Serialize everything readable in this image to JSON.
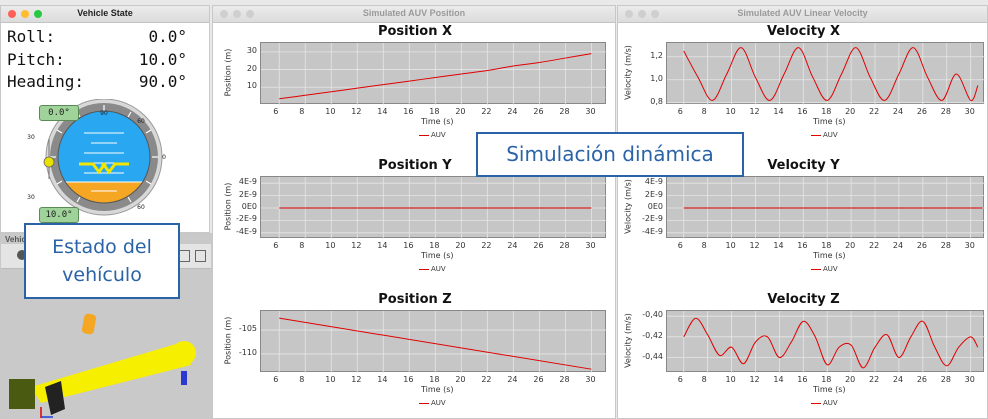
{
  "vehicle_state": {
    "title": "Vehicle State",
    "rows": [
      {
        "label": "Roll:",
        "value": "0.0°"
      },
      {
        "label": "Pitch:",
        "value": "10.0°"
      },
      {
        "label": "Heading:",
        "value": "90.0°"
      }
    ],
    "roll_badge": "0.0°",
    "pitch_badge": "10.0°",
    "dial_labels": {
      "top": "90",
      "ne": "60",
      "e": "0",
      "se": "60",
      "w30": "30",
      "sw30": "30"
    }
  },
  "viewer_3d": {
    "title": "Vehic"
  },
  "callouts": {
    "vehicle": [
      "Estado del",
      "vehículo"
    ],
    "simulation": "Simulación dinámica"
  },
  "position_window": {
    "title": "Simulated AUV Position"
  },
  "velocity_window": {
    "title": "Simulated AUV Linear Velocity"
  },
  "colors": {
    "line": "#e00000",
    "plot_bg": "#c6c6c6",
    "callout": "#2a63a8",
    "sky": "#29a7f0",
    "ground": "#f5a623",
    "marker": "#f2e600"
  },
  "chart_data": [
    {
      "type": "line",
      "title": "Position X",
      "xlabel": "Time (s)",
      "ylabel": "Position (m)",
      "xlim": [
        4.6,
        31.2
      ],
      "ylim": [
        0,
        35
      ],
      "xticks": [
        "6",
        "8",
        "10",
        "12",
        "14",
        "16",
        "18",
        "20",
        "22",
        "24",
        "26",
        "28",
        "30"
      ],
      "yticks": [
        "10",
        "20",
        "30"
      ],
      "series": [
        {
          "name": "AUV",
          "x": [
            6,
            8,
            10,
            12,
            14,
            16,
            18,
            20,
            22,
            24,
            26,
            28,
            30
          ],
          "y": [
            3.5,
            5.5,
            7.5,
            9.5,
            11.5,
            13.5,
            15.5,
            17.5,
            19.5,
            22,
            24,
            26.5,
            29
          ]
        }
      ]
    },
    {
      "type": "line",
      "title": "Position Y",
      "xlabel": "Time (s)",
      "ylabel": "Position (m)",
      "xlim": [
        4.6,
        31.2
      ],
      "ylim": [
        -5e-09,
        5e-09
      ],
      "xticks": [
        "6",
        "8",
        "10",
        "12",
        "14",
        "16",
        "18",
        "20",
        "22",
        "24",
        "26",
        "28",
        "30"
      ],
      "yticks": [
        "4E-9",
        "2E-9",
        "0E0",
        "-2E-9",
        "-4E-9"
      ],
      "series": [
        {
          "name": "AUV",
          "x": [
            6,
            30
          ],
          "y": [
            0,
            0
          ]
        }
      ]
    },
    {
      "type": "line",
      "title": "Position Z",
      "xlabel": "Time (s)",
      "ylabel": "Position (m)",
      "xlim": [
        4.6,
        31.2
      ],
      "ylim": [
        -114,
        -101
      ],
      "xticks": [
        "6",
        "8",
        "10",
        "12",
        "14",
        "16",
        "18",
        "20",
        "22",
        "24",
        "26",
        "28",
        "30"
      ],
      "yticks": [
        "-105",
        "-110"
      ],
      "series": [
        {
          "name": "AUV",
          "x": [
            6,
            30
          ],
          "y": [
            -102.5,
            -113.2
          ]
        }
      ]
    },
    {
      "type": "line",
      "title": "Velocity X",
      "xlabel": "Time (s)",
      "ylabel": "Velocity (m/s)",
      "xlim": [
        4.6,
        31.2
      ],
      "ylim": [
        0.78,
        1.32
      ],
      "xticks": [
        "6",
        "8",
        "10",
        "12",
        "14",
        "16",
        "18",
        "20",
        "22",
        "24",
        "26",
        "28",
        "30"
      ],
      "yticks": [
        "1,2",
        "1,0",
        "0,8"
      ],
      "series": [
        {
          "name": "AUV",
          "x": [
            6,
            7.2,
            8.4,
            9.6,
            10.8,
            12,
            13.2,
            14.4,
            15.6,
            16.8,
            18,
            19.2,
            20.4,
            21.6,
            22.8,
            24,
            25.2,
            26.4,
            27.6,
            28.8,
            30,
            30.6
          ],
          "y": [
            1.25,
            1.02,
            0.82,
            1.05,
            1.28,
            1.02,
            0.82,
            1.05,
            1.28,
            1.02,
            0.82,
            1.05,
            1.28,
            1.02,
            0.82,
            1.05,
            1.28,
            1.02,
            0.82,
            1.05,
            0.82,
            0.95
          ]
        }
      ]
    },
    {
      "type": "line",
      "title": "Velocity Y",
      "xlabel": "Time (s)",
      "ylabel": "Velocity (m/s)",
      "xlim": [
        4.6,
        31.2
      ],
      "ylim": [
        -5e-09,
        5e-09
      ],
      "xticks": [
        "6",
        "8",
        "10",
        "12",
        "14",
        "16",
        "18",
        "20",
        "22",
        "24",
        "26",
        "28",
        "30"
      ],
      "yticks": [
        "4E-9",
        "2E-9",
        "0E0",
        "-2E-9",
        "-4E-9"
      ],
      "series": [
        {
          "name": "AUV",
          "x": [
            6,
            31
          ],
          "y": [
            0,
            0
          ]
        }
      ]
    },
    {
      "type": "line",
      "title": "Velocity Z",
      "xlabel": "Time (s)",
      "ylabel": "Velocity (m/s)",
      "xlim": [
        4.6,
        31.2
      ],
      "ylim": [
        -0.455,
        -0.395
      ],
      "xticks": [
        "6",
        "8",
        "10",
        "12",
        "14",
        "16",
        "18",
        "20",
        "22",
        "24",
        "26",
        "28",
        "30"
      ],
      "yticks": [
        "-0,40",
        "-0,42",
        "-0,44"
      ],
      "series": [
        {
          "name": "AUV",
          "x": [
            6,
            7,
            8,
            9,
            10,
            11,
            12,
            13,
            14,
            15,
            16,
            17,
            18,
            19,
            20,
            21,
            22,
            23,
            24,
            25,
            26,
            27,
            28,
            29,
            30,
            30.6
          ],
          "y": [
            -0.42,
            -0.402,
            -0.418,
            -0.438,
            -0.43,
            -0.446,
            -0.425,
            -0.42,
            -0.44,
            -0.425,
            -0.405,
            -0.42,
            -0.447,
            -0.43,
            -0.428,
            -0.45,
            -0.43,
            -0.418,
            -0.44,
            -0.42,
            -0.405,
            -0.43,
            -0.448,
            -0.43,
            -0.42,
            -0.43
          ]
        }
      ]
    }
  ]
}
